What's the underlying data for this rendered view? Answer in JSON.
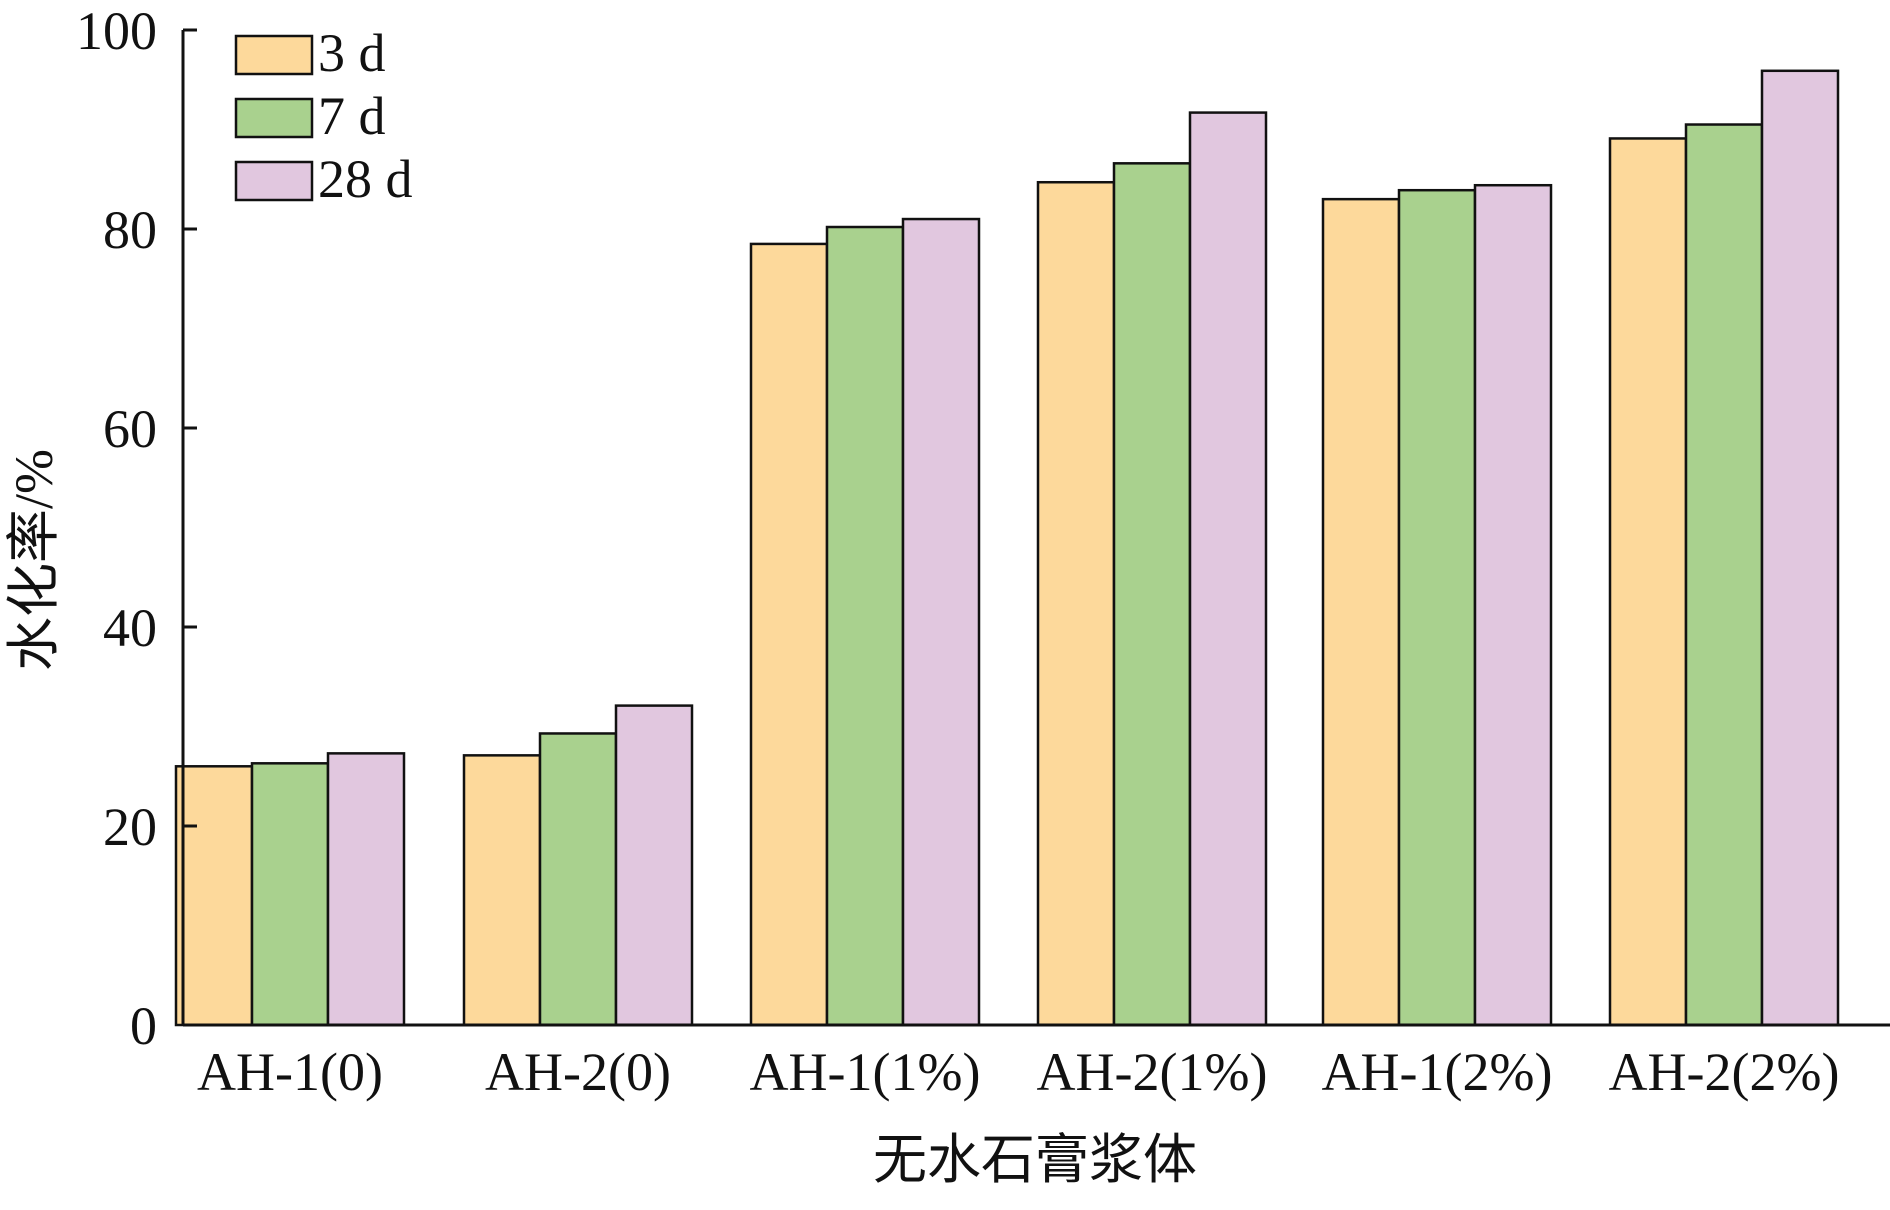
{
  "chart_data": {
    "type": "bar",
    "title": "",
    "xlabel": "无水石膏浆体",
    "ylabel": "水化率/%",
    "ylim": [
      0,
      100
    ],
    "yticks": [
      0,
      20,
      40,
      60,
      80,
      100
    ],
    "grid": false,
    "legend_position": "top-left",
    "categories": [
      "AH-1(0)",
      "AH-2(0)",
      "AH-1(1%)",
      "AH-2(1%)",
      "AH-1(2%)",
      "AH-2(2%)"
    ],
    "series": [
      {
        "name": "3 d",
        "color": "#FDD99B",
        "values": [
          26.0,
          27.1,
          78.5,
          84.7,
          83.0,
          89.1
        ]
      },
      {
        "name": "7 d",
        "color": "#A9D18E",
        "values": [
          26.3,
          29.3,
          80.2,
          86.6,
          83.9,
          90.5
        ]
      },
      {
        "name": "28 d",
        "color": "#E1C7DF",
        "values": [
          27.3,
          32.1,
          81.0,
          91.7,
          84.4,
          95.9
        ]
      }
    ]
  }
}
